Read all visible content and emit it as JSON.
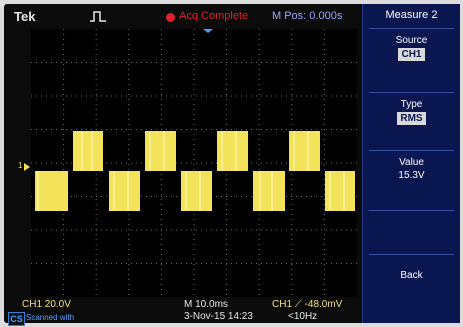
{
  "header": {
    "brand": "Tek",
    "run_icon": "pulse-waveform-icon",
    "acq_status": "Acq Complete",
    "m_pos": "M Pos: 0.000s"
  },
  "menu": {
    "title": "Measure 2",
    "source_label": "Source",
    "source_value": "CH1",
    "type_label": "Type",
    "type_value": "RMS",
    "value_label": "Value",
    "value_value": "15.3V",
    "back_label": "Back"
  },
  "footer": {
    "ch1_scale": "CH1  20.0V",
    "timebase": "M 10.0ms",
    "date_time": "3-Nov-15 14:23",
    "trigger": "CH1  ⟋  -48.0mV",
    "freq": "<10Hz",
    "scanner_text": "Scanned with",
    "scanner_logo": "CS"
  },
  "colors": {
    "trace": "#f2e35a",
    "accent_red": "#e0202a",
    "menu_bg": "#0a1650"
  }
}
